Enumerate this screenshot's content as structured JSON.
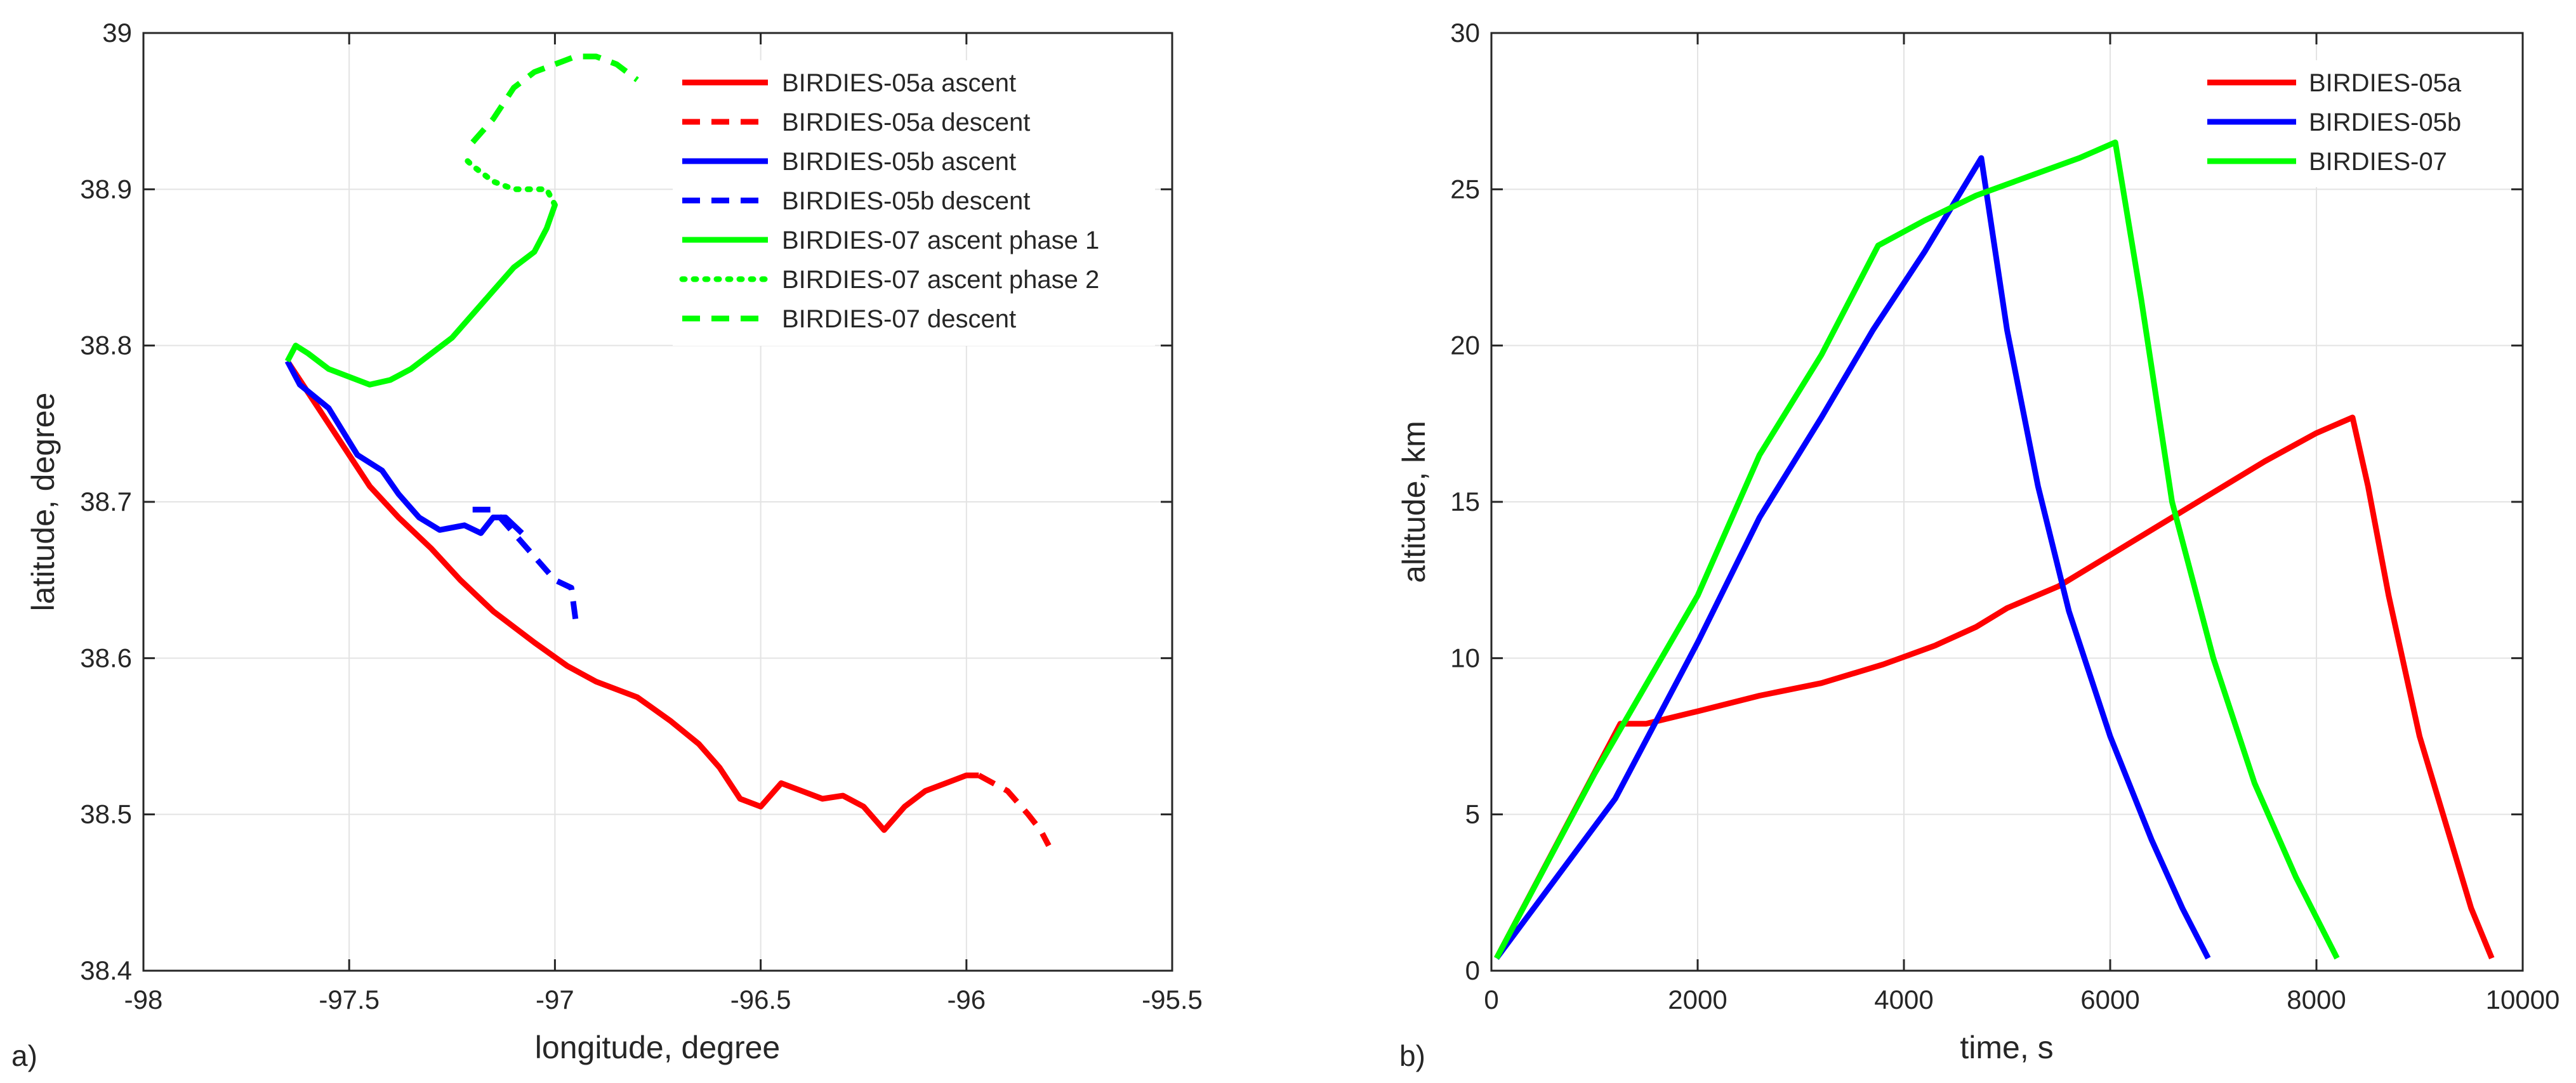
{
  "chart_data": [
    {
      "type": "line",
      "panel_label": "a)",
      "xlabel": "longitude, degree",
      "ylabel": "latitude, degree",
      "xlim": [
        -98,
        -95.5
      ],
      "ylim": [
        38.4,
        39
      ],
      "xticks": [
        -98,
        -97.5,
        -97,
        -96.5,
        -96,
        -95.5
      ],
      "xtick_labels": [
        "-98",
        "-97.5",
        "-97",
        "-96.5",
        "-96",
        "-95.5"
      ],
      "yticks": [
        38.4,
        38.5,
        38.6,
        38.7,
        38.8,
        38.9,
        39
      ],
      "ytick_labels": [
        "38.4",
        "38.5",
        "38.6",
        "38.7",
        "38.8",
        "38.9",
        "39"
      ],
      "grid": true,
      "legend_position": "top-right",
      "series": [
        {
          "name": "BIRDIES-05a ascent",
          "color": "#ff0000",
          "style": "solid",
          "points": [
            [
              -97.65,
              38.79
            ],
            [
              -97.6,
              38.77
            ],
            [
              -97.55,
              38.75
            ],
            [
              -97.5,
              38.73
            ],
            [
              -97.45,
              38.71
            ],
            [
              -97.38,
              38.69
            ],
            [
              -97.3,
              38.67
            ],
            [
              -97.23,
              38.65
            ],
            [
              -97.15,
              38.63
            ],
            [
              -97.05,
              38.61
            ],
            [
              -96.97,
              38.595
            ],
            [
              -96.9,
              38.585
            ],
            [
              -96.8,
              38.575
            ],
            [
              -96.72,
              38.56
            ],
            [
              -96.65,
              38.545
            ],
            [
              -96.6,
              38.53
            ],
            [
              -96.55,
              38.51
            ],
            [
              -96.5,
              38.505
            ],
            [
              -96.45,
              38.52
            ],
            [
              -96.4,
              38.515
            ],
            [
              -96.35,
              38.51
            ],
            [
              -96.3,
              38.512
            ],
            [
              -96.25,
              38.505
            ],
            [
              -96.2,
              38.49
            ],
            [
              -96.15,
              38.505
            ],
            [
              -96.1,
              38.515
            ],
            [
              -96.05,
              38.52
            ],
            [
              -96.0,
              38.525
            ],
            [
              -95.97,
              38.525
            ]
          ]
        },
        {
          "name": "BIRDIES-05a descent",
          "color": "#ff0000",
          "style": "dashed",
          "points": [
            [
              -95.97,
              38.525
            ],
            [
              -95.9,
              38.515
            ],
            [
              -95.85,
              38.5
            ],
            [
              -95.82,
              38.49
            ],
            [
              -95.8,
              38.48
            ]
          ]
        },
        {
          "name": "BIRDIES-05b ascent",
          "color": "#0000ff",
          "style": "solid",
          "points": [
            [
              -97.65,
              38.79
            ],
            [
              -97.62,
              38.775
            ],
            [
              -97.55,
              38.76
            ],
            [
              -97.48,
              38.73
            ],
            [
              -97.42,
              38.72
            ],
            [
              -97.38,
              38.705
            ],
            [
              -97.33,
              38.69
            ],
            [
              -97.28,
              38.682
            ],
            [
              -97.22,
              38.685
            ],
            [
              -97.18,
              38.68
            ],
            [
              -97.15,
              38.69
            ],
            [
              -97.12,
              38.69
            ],
            [
              -97.08,
              38.68
            ]
          ]
        },
        {
          "name": "BIRDIES-05b descent",
          "color": "#0000ff",
          "style": "dashed",
          "points": [
            [
              -97.2,
              38.695
            ],
            [
              -97.15,
              38.695
            ],
            [
              -97.1,
              38.68
            ],
            [
              -97.05,
              38.665
            ],
            [
              -97.0,
              38.65
            ],
            [
              -96.96,
              38.645
            ],
            [
              -96.95,
              38.625
            ]
          ]
        },
        {
          "name": "BIRDIES-07 ascent phase 1",
          "color": "#00ff00",
          "style": "solid",
          "points": [
            [
              -97.65,
              38.79
            ],
            [
              -97.63,
              38.8
            ],
            [
              -97.6,
              38.795
            ],
            [
              -97.55,
              38.785
            ],
            [
              -97.5,
              38.78
            ],
            [
              -97.45,
              38.775
            ],
            [
              -97.4,
              38.778
            ],
            [
              -97.35,
              38.785
            ],
            [
              -97.3,
              38.795
            ],
            [
              -97.25,
              38.805
            ],
            [
              -97.2,
              38.82
            ],
            [
              -97.15,
              38.835
            ],
            [
              -97.1,
              38.85
            ],
            [
              -97.05,
              38.86
            ],
            [
              -97.02,
              38.875
            ],
            [
              -97.0,
              38.89
            ]
          ]
        },
        {
          "name": "BIRDIES-07 ascent phase 2",
          "color": "#00ff00",
          "style": "dotted",
          "points": [
            [
              -97.0,
              38.89
            ],
            [
              -97.02,
              38.9
            ],
            [
              -97.05,
              38.9
            ],
            [
              -97.1,
              38.9
            ],
            [
              -97.15,
              38.905
            ],
            [
              -97.2,
              38.915
            ],
            [
              -97.22,
              38.92
            ]
          ]
        },
        {
          "name": "BIRDIES-07 descent",
          "color": "#00ff00",
          "style": "dashed",
          "points": [
            [
              -97.2,
              38.93
            ],
            [
              -97.15,
              38.945
            ],
            [
              -97.1,
              38.965
            ],
            [
              -97.05,
              38.975
            ],
            [
              -97.0,
              38.98
            ],
            [
              -96.95,
              38.985
            ],
            [
              -96.9,
              38.985
            ],
            [
              -96.85,
              38.98
            ],
            [
              -96.8,
              38.97
            ]
          ]
        }
      ]
    },
    {
      "type": "line",
      "panel_label": "b)",
      "xlabel": "time, s",
      "ylabel": "altitude, km",
      "xlim": [
        0,
        10000
      ],
      "ylim": [
        0,
        30
      ],
      "xticks": [
        0,
        2000,
        4000,
        6000,
        8000,
        10000
      ],
      "xtick_labels": [
        "0",
        "2000",
        "4000",
        "6000",
        "8000",
        "10000"
      ],
      "yticks": [
        0,
        5,
        10,
        15,
        20,
        25,
        30
      ],
      "ytick_labels": [
        "0",
        "5",
        "10",
        "15",
        "20",
        "25",
        "30"
      ],
      "grid": true,
      "legend_position": "top-right",
      "series": [
        {
          "name": "BIRDIES-05a",
          "color": "#ff0000",
          "style": "solid",
          "points": [
            [
              50,
              0.4
            ],
            [
              1250,
              7.9
            ],
            [
              1500,
              7.9
            ],
            [
              2000,
              8.3
            ],
            [
              2600,
              8.8
            ],
            [
              3200,
              9.2
            ],
            [
              3800,
              9.8
            ],
            [
              4300,
              10.4
            ],
            [
              4700,
              11.0
            ],
            [
              5000,
              11.6
            ],
            [
              5500,
              12.3
            ],
            [
              6000,
              13.3
            ],
            [
              6500,
              14.3
            ],
            [
              7000,
              15.3
            ],
            [
              7500,
              16.3
            ],
            [
              8000,
              17.2
            ],
            [
              8350,
              17.7
            ],
            [
              8500,
              15.5
            ],
            [
              8700,
              12.0
            ],
            [
              9000,
              7.5
            ],
            [
              9300,
              4.2
            ],
            [
              9500,
              2.0
            ],
            [
              9700,
              0.4
            ]
          ]
        },
        {
          "name": "BIRDIES-05b",
          "color": "#0000ff",
          "style": "solid",
          "points": [
            [
              50,
              0.4
            ],
            [
              1200,
              5.5
            ],
            [
              2000,
              10.5
            ],
            [
              2600,
              14.5
            ],
            [
              3200,
              17.7
            ],
            [
              3700,
              20.5
            ],
            [
              4200,
              23.0
            ],
            [
              4750,
              26.0
            ],
            [
              5000,
              20.5
            ],
            [
              5300,
              15.5
            ],
            [
              5600,
              11.5
            ],
            [
              6000,
              7.5
            ],
            [
              6400,
              4.2
            ],
            [
              6700,
              2.0
            ],
            [
              6950,
              0.4
            ]
          ]
        },
        {
          "name": "BIRDIES-07",
          "color": "#00ff00",
          "style": "solid",
          "points": [
            [
              50,
              0.4
            ],
            [
              1000,
              6.3
            ],
            [
              2000,
              12.0
            ],
            [
              2600,
              16.5
            ],
            [
              3200,
              19.7
            ],
            [
              3750,
              23.2
            ],
            [
              4200,
              24.0
            ],
            [
              4700,
              24.8
            ],
            [
              5200,
              25.4
            ],
            [
              5700,
              26.0
            ],
            [
              6050,
              26.5
            ],
            [
              6300,
              21.5
            ],
            [
              6600,
              15.0
            ],
            [
              7000,
              10.0
            ],
            [
              7400,
              6.0
            ],
            [
              7800,
              3.0
            ],
            [
              8200,
              0.4
            ]
          ]
        }
      ]
    }
  ]
}
